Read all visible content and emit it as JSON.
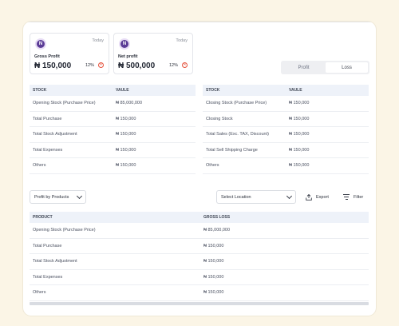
{
  "cards": [
    {
      "avatar_letter": "N",
      "period": "Today",
      "label": "Gross Profit",
      "amount": "₦ 150,000",
      "pct": "12%"
    },
    {
      "avatar_letter": "N",
      "period": "Today",
      "label": "Net profit",
      "amount": "₦ 500,000",
      "pct": "12%"
    }
  ],
  "toggle": {
    "profit": "Profit",
    "loss": "Loss",
    "active": "loss"
  },
  "left_table": {
    "columns": [
      "STOCK",
      "VAULE"
    ],
    "rows": [
      [
        "Opening Stock (Purchase Price)",
        "₦ 85,000,000"
      ],
      [
        "Total Purchase",
        "₦ 150,000"
      ],
      [
        "Total  Stock Adjustment",
        "₦ 150,000"
      ],
      [
        "Total Expenses",
        "₦ 150,000"
      ],
      [
        "Others",
        "₦ 150,000"
      ]
    ]
  },
  "right_table": {
    "columns": [
      "STOCK",
      "VAULE"
    ],
    "rows": [
      [
        "Closing Stock (Purchase Price)",
        "₦ 150,000"
      ],
      [
        "Closing Stock",
        "₦ 150,000"
      ],
      [
        "Total Sales (Exc. TAX, Discount)",
        "₦ 150,000"
      ],
      [
        "Total Sell Shipping Charge",
        "₦ 150,000"
      ],
      [
        "Others",
        "₦ 150,000"
      ]
    ]
  },
  "controls": {
    "profit_by": "Profit by Products",
    "location": "Select Location",
    "export": "Export",
    "filter": "Filter"
  },
  "bottom_table": {
    "columns": [
      "PRODUCT",
      "GROSS LOSS"
    ],
    "rows": [
      [
        "Opening Stock (Purchase Price)",
        "₦ 85,000,000"
      ],
      [
        "Total Purchase",
        "₦ 150,000"
      ],
      [
        "Total  Stock Adjustment",
        "₦ 150,000"
      ],
      [
        "Total Expenses",
        "₦ 150,000"
      ],
      [
        "Others",
        "₦ 150,000"
      ]
    ]
  },
  "colors": {
    "accent": "#5b3c96",
    "error": "#e5533d",
    "header_bg": "#eef2f9",
    "page_bg": "#fbf5e6"
  },
  "icons": [
    "avatar-n-icon",
    "close-circle-icon",
    "chevron-down-icon",
    "export-icon",
    "filter-icon"
  ]
}
